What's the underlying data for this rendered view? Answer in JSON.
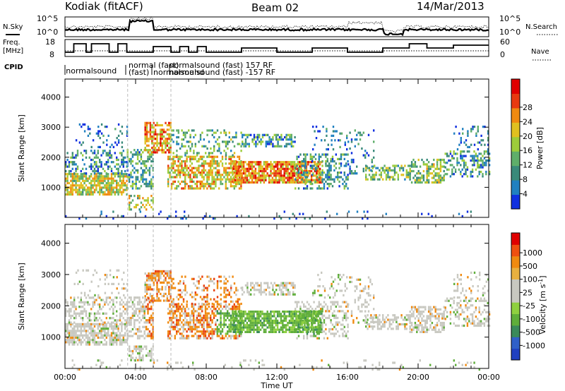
{
  "header": {
    "station": "Kodiak (fitACF)",
    "beam": "Beam 02",
    "date": "14/Mar/2013"
  },
  "strip_labels": {
    "nsky": "N.Sky",
    "nsearch": "N.Search",
    "freq": "Freq.",
    "freq_unit": "[MHz]",
    "nave": "Nave",
    "cpid": "CPID"
  },
  "noise_axis": {
    "left_ticks": [
      "10^5",
      "10^0"
    ],
    "right_ticks": [
      "10^5",
      "10^0"
    ]
  },
  "freq_axis": {
    "left_ticks": [
      "18",
      "8"
    ],
    "right_ticks": [
      "60",
      "0"
    ]
  },
  "cpid_labels": [
    {
      "text": "normalsound",
      "x": 0.05
    },
    {
      "text": "normal (fast)",
      "x": 3.6
    },
    {
      "text": "(fast)",
      "x": 3.6
    },
    {
      "text": "normalsound",
      "x": 5.0
    },
    {
      "text": "normalsound (fast) 157 RF",
      "x": 5.9
    },
    {
      "text": "normalsound (fast) -157 RF",
      "x": 5.9
    }
  ],
  "chart_data": [
    {
      "type": "heatmap",
      "panel": "power",
      "ylabel": "Slant Range [km]",
      "xlabel": "",
      "ylim": [
        0,
        4600
      ],
      "yticks": [
        1000,
        2000,
        3000,
        4000
      ],
      "xlim": [
        0,
        24
      ],
      "colorbar": {
        "label": "Power [dB]",
        "ticks": [
          4,
          8,
          12,
          16,
          20,
          24,
          28
        ],
        "colors": [
          "#1030e0",
          "#2080c0",
          "#3a8a7a",
          "#5fae6a",
          "#9dcc3a",
          "#e0c020",
          "#f08a10",
          "#e83a10",
          "#e00000"
        ]
      }
    },
    {
      "type": "heatmap",
      "panel": "velocity",
      "ylabel": "Slant Range [km]",
      "xlabel": "Time UT",
      "ylim": [
        0,
        4600
      ],
      "yticks": [
        1000,
        2000,
        3000,
        4000
      ],
      "xlim": [
        0,
        24
      ],
      "xticks": [
        "00:00",
        "04:00",
        "08:00",
        "12:00",
        "16:00",
        "20:00",
        "00:00"
      ],
      "colorbar": {
        "label": "Velocity [m s^-1]",
        "ticks": [
          "1000",
          "500",
          "100",
          "25",
          "-25",
          "-100",
          "-500",
          "-1000"
        ],
        "colors": [
          "#2040c0",
          "#3060c8",
          "#3a8a5a",
          "#5fae3a",
          "#8fd040",
          "#c8c8c0",
          "#c8c8c0",
          "#e8b040",
          "#f08a10",
          "#f05010",
          "#e00000"
        ]
      }
    }
  ]
}
